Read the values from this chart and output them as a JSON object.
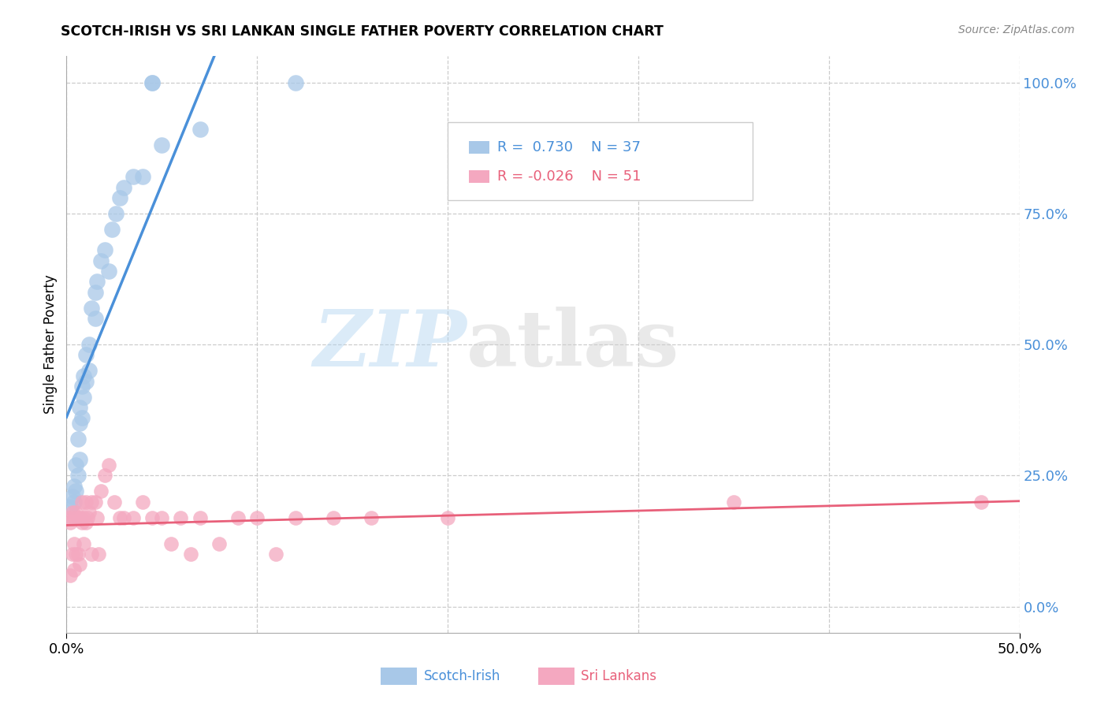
{
  "title": "SCOTCH-IRISH VS SRI LANKAN SINGLE FATHER POVERTY CORRELATION CHART",
  "source": "Source: ZipAtlas.com",
  "ylabel": "Single Father Poverty",
  "yticks": [
    "0.0%",
    "25.0%",
    "50.0%",
    "75.0%",
    "100.0%"
  ],
  "ytick_vals": [
    0.0,
    0.25,
    0.5,
    0.75,
    1.0
  ],
  "xtick_vals": [
    0.0,
    0.5
  ],
  "xtick_labels": [
    "0.0%",
    "50.0%"
  ],
  "xlim": [
    0.0,
    0.5
  ],
  "ylim": [
    -0.05,
    1.05
  ],
  "r_scotch": 0.73,
  "n_scotch": 37,
  "r_sri": -0.026,
  "n_sri": 51,
  "scotch_color": "#A8C8E8",
  "sri_color": "#F4A8C0",
  "scotch_line_color": "#4A90D9",
  "sri_line_color": "#E8607A",
  "background_color": "#FFFFFF",
  "watermark_zip": "ZIP",
  "watermark_atlas": "atlas",
  "grid_color": "#CCCCCC",
  "legend_box_color": "#F0F0F0",
  "scotch_x": [
    0.002,
    0.003,
    0.004,
    0.004,
    0.005,
    0.005,
    0.006,
    0.006,
    0.007,
    0.007,
    0.007,
    0.008,
    0.008,
    0.009,
    0.009,
    0.01,
    0.01,
    0.012,
    0.012,
    0.013,
    0.015,
    0.015,
    0.016,
    0.018,
    0.02,
    0.022,
    0.024,
    0.026,
    0.028,
    0.03,
    0.035,
    0.04,
    0.045,
    0.045,
    0.05,
    0.07,
    0.12
  ],
  "scotch_y": [
    0.19,
    0.21,
    0.2,
    0.23,
    0.22,
    0.27,
    0.25,
    0.32,
    0.28,
    0.35,
    0.38,
    0.36,
    0.42,
    0.4,
    0.44,
    0.43,
    0.48,
    0.45,
    0.5,
    0.57,
    0.55,
    0.6,
    0.62,
    0.66,
    0.68,
    0.64,
    0.72,
    0.75,
    0.78,
    0.8,
    0.82,
    0.82,
    1.0,
    1.0,
    0.88,
    0.91,
    1.0
  ],
  "sri_x": [
    0.001,
    0.002,
    0.002,
    0.003,
    0.003,
    0.004,
    0.004,
    0.004,
    0.005,
    0.005,
    0.006,
    0.006,
    0.007,
    0.007,
    0.008,
    0.008,
    0.009,
    0.009,
    0.01,
    0.01,
    0.011,
    0.012,
    0.013,
    0.013,
    0.015,
    0.016,
    0.017,
    0.018,
    0.02,
    0.022,
    0.025,
    0.028,
    0.03,
    0.035,
    0.04,
    0.045,
    0.05,
    0.055,
    0.06,
    0.065,
    0.07,
    0.08,
    0.09,
    0.1,
    0.11,
    0.12,
    0.14,
    0.16,
    0.2,
    0.35,
    0.48
  ],
  "sri_y": [
    0.17,
    0.16,
    0.06,
    0.18,
    0.1,
    0.17,
    0.12,
    0.07,
    0.18,
    0.1,
    0.17,
    0.1,
    0.17,
    0.08,
    0.2,
    0.16,
    0.17,
    0.12,
    0.2,
    0.16,
    0.17,
    0.18,
    0.2,
    0.1,
    0.2,
    0.17,
    0.1,
    0.22,
    0.25,
    0.27,
    0.2,
    0.17,
    0.17,
    0.17,
    0.2,
    0.17,
    0.17,
    0.12,
    0.17,
    0.1,
    0.17,
    0.12,
    0.17,
    0.17,
    0.1,
    0.17,
    0.17,
    0.17,
    0.17,
    0.2,
    0.2
  ]
}
